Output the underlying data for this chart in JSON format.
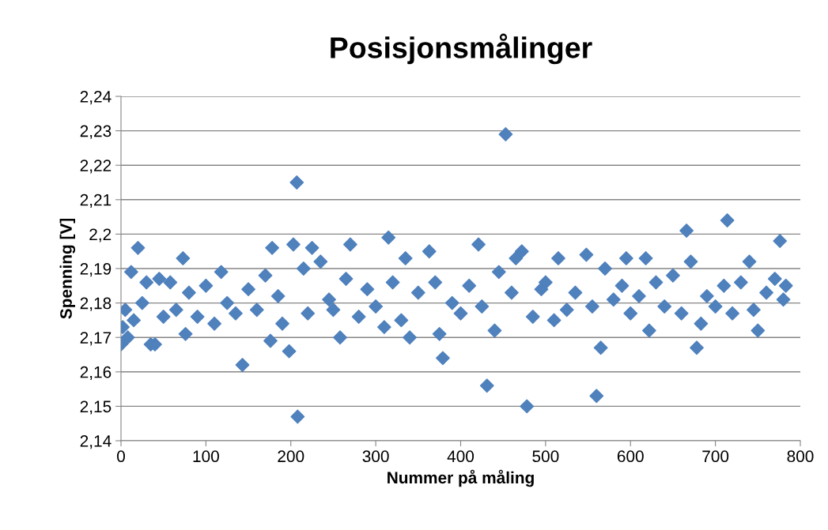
{
  "chart_data": {
    "type": "scatter",
    "title": "Posisjonsmålinger",
    "xlabel": "Nummer på måling",
    "ylabel": "Spenning [V]",
    "xlim": [
      0,
      800
    ],
    "xticks": [
      0,
      100,
      200,
      300,
      400,
      500,
      600,
      700,
      800
    ],
    "ylim": [
      2.14,
      2.24
    ],
    "yticks": [
      {
        "value": 2.14,
        "label": "2,14"
      },
      {
        "value": 2.15,
        "label": "2,15"
      },
      {
        "value": 2.16,
        "label": "2,16"
      },
      {
        "value": 2.17,
        "label": "2,17"
      },
      {
        "value": 2.18,
        "label": "2,18"
      },
      {
        "value": 2.19,
        "label": "2,19"
      },
      {
        "value": 2.2,
        "label": "2,2"
      },
      {
        "value": 2.21,
        "label": "2,21"
      },
      {
        "value": 2.22,
        "label": "2,22"
      },
      {
        "value": 2.23,
        "label": "2,23"
      },
      {
        "value": 2.24,
        "label": "2,24"
      }
    ],
    "grid": "y",
    "marker": "diamond",
    "legend": false,
    "series": [
      {
        "color": "#4f81bd",
        "x": [
          0,
          2,
          5,
          8,
          12,
          15,
          20,
          25,
          30,
          35,
          40,
          45,
          50,
          58,
          65,
          73,
          76,
          80,
          90,
          100,
          110,
          118,
          125,
          135,
          143,
          150,
          160,
          170,
          176,
          178,
          185,
          190,
          198,
          203,
          207,
          208,
          215,
          220,
          225,
          235,
          245,
          250,
          258,
          265,
          270,
          280,
          290,
          300,
          310,
          315,
          320,
          330,
          335,
          340,
          350,
          363,
          370,
          375,
          379,
          390,
          400,
          410,
          421,
          425,
          431,
          440,
          445,
          453,
          460,
          465,
          472,
          478,
          485,
          495,
          500,
          510,
          515,
          525,
          535,
          548,
          555,
          560,
          565,
          570,
          580,
          590,
          595,
          600,
          610,
          618,
          622,
          630,
          640,
          650,
          660,
          666,
          671,
          678,
          683,
          690,
          700,
          710,
          714,
          720,
          730,
          740,
          745,
          750,
          760,
          770,
          776,
          780,
          783
        ],
        "values": [
          2.168,
          2.173,
          2.178,
          2.17,
          2.189,
          2.175,
          2.196,
          2.18,
          2.186,
          2.168,
          2.168,
          2.187,
          2.176,
          2.186,
          2.178,
          2.193,
          2.171,
          2.183,
          2.176,
          2.185,
          2.174,
          2.189,
          2.18,
          2.177,
          2.162,
          2.184,
          2.178,
          2.188,
          2.169,
          2.196,
          2.182,
          2.174,
          2.166,
          2.197,
          2.215,
          2.147,
          2.19,
          2.177,
          2.196,
          2.192,
          2.181,
          2.178,
          2.17,
          2.187,
          2.197,
          2.176,
          2.184,
          2.179,
          2.173,
          2.199,
          2.186,
          2.175,
          2.193,
          2.17,
          2.183,
          2.195,
          2.186,
          2.171,
          2.164,
          2.18,
          2.177,
          2.185,
          2.197,
          2.179,
          2.156,
          2.172,
          2.189,
          2.229,
          2.183,
          2.193,
          2.195,
          2.15,
          2.176,
          2.184,
          2.186,
          2.175,
          2.193,
          2.178,
          2.183,
          2.194,
          2.179,
          2.153,
          2.167,
          2.19,
          2.181,
          2.185,
          2.193,
          2.177,
          2.182,
          2.193,
          2.172,
          2.186,
          2.179,
          2.188,
          2.177,
          2.201,
          2.192,
          2.167,
          2.174,
          2.182,
          2.179,
          2.185,
          2.204,
          2.177,
          2.186,
          2.192,
          2.178,
          2.172,
          2.183,
          2.187,
          2.198,
          2.181,
          2.185
        ]
      }
    ]
  }
}
